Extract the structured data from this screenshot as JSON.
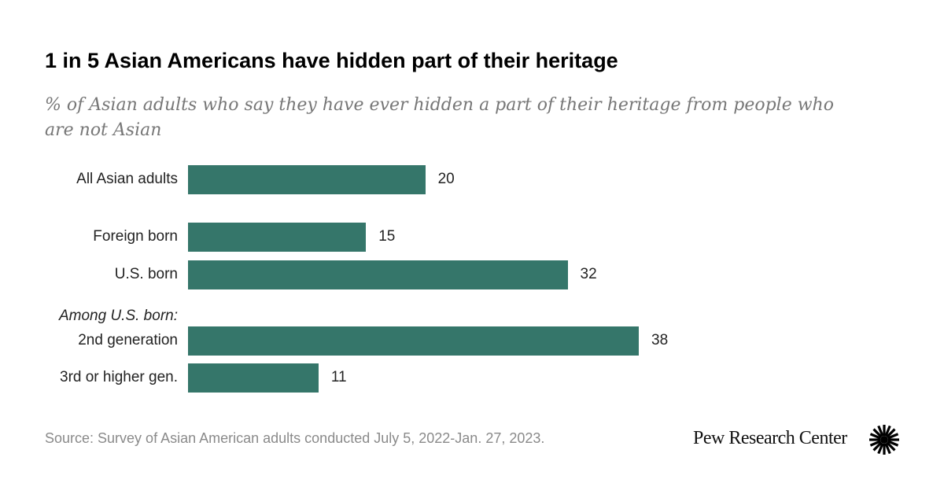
{
  "chart_data": {
    "type": "bar",
    "orientation": "horizontal",
    "title": "1 in 5 Asian Americans have hidden part of their heritage",
    "subtitle": "% of Asian adults who say they have ever hidden a part of their heritage from people who are not Asian",
    "categories": [
      "All Asian adults",
      "Foreign born",
      "U.S. born",
      "2nd generation",
      "3rd or higher gen."
    ],
    "values": [
      20,
      15,
      32,
      38,
      11
    ],
    "group_label": "Among U.S. born:",
    "xlabel": "",
    "ylabel": "",
    "xlim": [
      0,
      40
    ],
    "grid": false,
    "bar_color": "#35766a"
  },
  "source": "Source: Survey of Asian American adults conducted July 5, 2022-Jan. 27, 2023.",
  "logo": "Pew Research Center"
}
